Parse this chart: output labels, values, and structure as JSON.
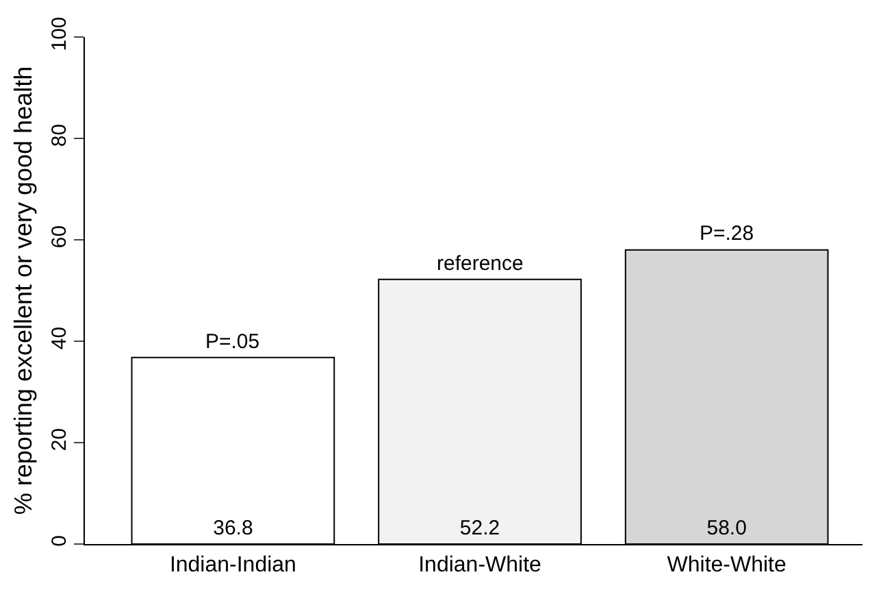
{
  "chart_data": {
    "type": "bar",
    "ylabel": "% reporting excellent or very good health",
    "categories": [
      "Indian-Indian",
      "Indian-White",
      "White-White"
    ],
    "values": [
      36.8,
      52.2,
      58.0
    ],
    "value_labels": [
      "36.8",
      "52.2",
      "58.0"
    ],
    "colors": [
      "#ffffff",
      "#f2f2f2",
      "#d6d6d6"
    ],
    "ylim": [
      0,
      100
    ],
    "yticks": [
      0,
      20,
      40,
      60,
      80,
      100
    ],
    "grid": false,
    "annotations": [
      {
        "text": "P=.05",
        "x": "Indian-Indian",
        "y": 36.8
      },
      {
        "text": "reference",
        "x": "Indian-White",
        "y": 52.2
      },
      {
        "text": "P=.28",
        "x": "White-White",
        "y": 58.0
      }
    ]
  }
}
